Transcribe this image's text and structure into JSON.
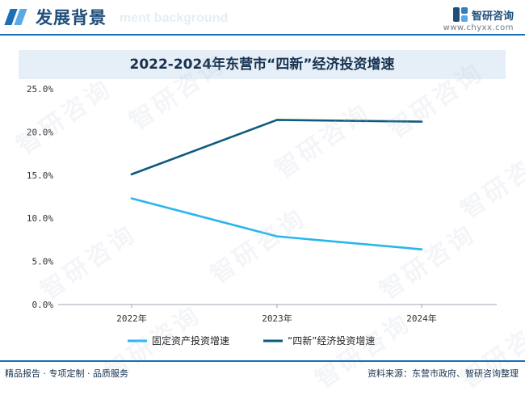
{
  "header": {
    "section_title": "发展背景",
    "section_subtitle": "ment background",
    "brand_name": "智研咨询",
    "brand_url": "www.chyxx.com"
  },
  "watermark_text": "智研咨询",
  "chart_data": {
    "type": "line",
    "title": "2022-2024年东营市“四新”经济投资增速",
    "categories": [
      "2022年",
      "2023年",
      "2024年"
    ],
    "series": [
      {
        "name": "固定资产投资增速",
        "values": [
          12.3,
          7.9,
          6.4
        ],
        "color": "#29b6ec"
      },
      {
        "name": "“四新”经济投资增速",
        "values": [
          15.1,
          21.4,
          21.2
        ],
        "color": "#0e5a7e"
      }
    ],
    "yticks": [
      "25.0%",
      "20.0%",
      "15.0%",
      "10.0%",
      "5.0%",
      "0.0%"
    ],
    "ytick_values": [
      25,
      20,
      15,
      10,
      5,
      0
    ],
    "ylim": [
      0,
      25
    ],
    "xlabel": "",
    "ylabel": "",
    "legend_position": "bottom"
  },
  "footer": {
    "left": "精品报告 · 专项定制 · 品质服务",
    "right": "资料来源：东营市政府、智研咨询整理"
  }
}
